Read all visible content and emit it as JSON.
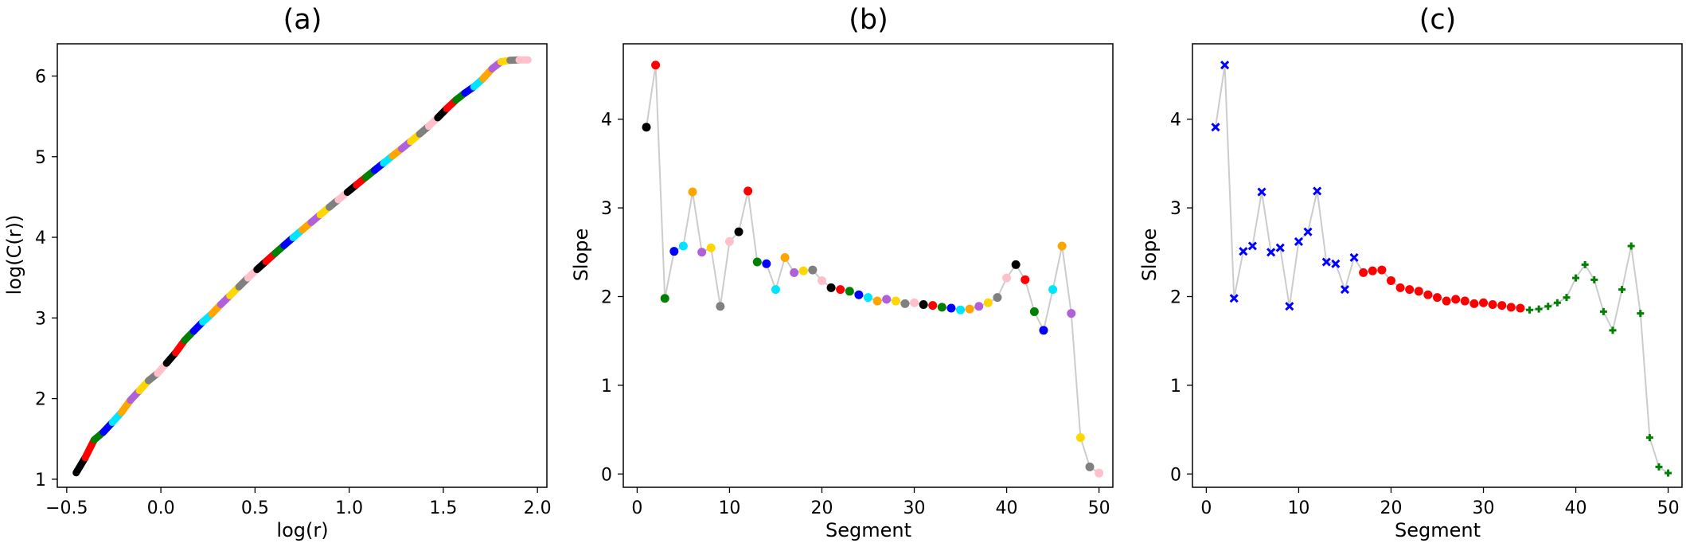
{
  "colors": {
    "connector": "#cccccc",
    "cycle": [
      "#000000",
      "#ff0000",
      "#008000",
      "#0000ff",
      "#00e5ff",
      "#ffa500",
      "#b060d8",
      "#ffd700",
      "#808080",
      "#ffc0cb"
    ],
    "regime1": "#0000ff",
    "regime2": "#ff0000",
    "regime3": "#008000"
  },
  "chart_data": [
    {
      "type": "scatter",
      "title": "(a)",
      "xlabel": "log(r)",
      "ylabel": "log(C(r))",
      "xlim": [
        -0.55,
        2.05
      ],
      "ylim": [
        0.9,
        6.4
      ],
      "xticks": [
        -0.5,
        0.0,
        0.5,
        1.0,
        1.5,
        2.0
      ],
      "xtick_labels": [
        "−0.5",
        "0.0",
        "0.5",
        "1.0",
        "1.5",
        "2.0"
      ],
      "yticks": [
        1,
        2,
        3,
        4,
        5,
        6
      ],
      "ytick_labels": [
        "1",
        "2",
        "3",
        "4",
        "5",
        "6"
      ],
      "grid": false,
      "legend": "none",
      "segments": 50,
      "x_start": -0.45,
      "x_end": 1.95,
      "y_start": 1.08,
      "note_source": "segment slopes from panel (b)"
    },
    {
      "type": "line",
      "title": "(b)",
      "xlabel": "Segment",
      "ylabel": "Slope",
      "xlim": [
        -1.5,
        51.5
      ],
      "ylim": [
        -0.15,
        4.85
      ],
      "xticks": [
        0,
        10,
        20,
        30,
        40,
        50
      ],
      "xtick_labels": [
        "0",
        "10",
        "20",
        "30",
        "40",
        "50"
      ],
      "yticks": [
        0,
        1,
        2,
        3,
        4
      ],
      "ytick_labels": [
        "0",
        "1",
        "2",
        "3",
        "4"
      ],
      "grid": false,
      "legend": "none",
      "x": [
        1,
        2,
        3,
        4,
        5,
        6,
        7,
        8,
        9,
        10,
        11,
        12,
        13,
        14,
        15,
        16,
        17,
        18,
        19,
        20,
        21,
        22,
        23,
        24,
        25,
        26,
        27,
        28,
        29,
        30,
        31,
        32,
        33,
        34,
        35,
        36,
        37,
        38,
        39,
        40,
        41,
        42,
        43,
        44,
        45,
        46,
        47,
        48,
        49,
        50
      ],
      "values": [
        3.91,
        4.61,
        1.98,
        2.51,
        2.57,
        3.18,
        2.5,
        2.55,
        1.89,
        2.62,
        2.73,
        3.19,
        2.39,
        2.37,
        2.08,
        2.44,
        2.27,
        2.29,
        2.3,
        2.18,
        2.1,
        2.08,
        2.06,
        2.02,
        1.99,
        1.95,
        1.97,
        1.95,
        1.92,
        1.93,
        1.91,
        1.9,
        1.88,
        1.87,
        1.85,
        1.86,
        1.89,
        1.93,
        1.99,
        2.21,
        2.36,
        2.19,
        1.83,
        1.62,
        2.08,
        2.57,
        1.81,
        0.41,
        0.08,
        0.01
      ]
    },
    {
      "type": "line",
      "title": "(c)",
      "xlabel": "Segment",
      "ylabel": "Slope",
      "xlim": [
        -1.5,
        51.5
      ],
      "ylim": [
        -0.15,
        4.85
      ],
      "xticks": [
        0,
        10,
        20,
        30,
        40,
        50
      ],
      "xtick_labels": [
        "0",
        "10",
        "20",
        "30",
        "40",
        "50"
      ],
      "yticks": [
        0,
        1,
        2,
        3,
        4
      ],
      "ytick_labels": [
        "0",
        "1",
        "2",
        "3",
        "4"
      ],
      "grid": false,
      "legend": "none",
      "regimes": [
        {
          "from": 1,
          "to": 16,
          "marker": "x",
          "color": "#0000ff"
        },
        {
          "from": 17,
          "to": 34,
          "marker": "circle",
          "color": "#ff0000"
        },
        {
          "from": 35,
          "to": 50,
          "marker": "plus",
          "color": "#008000"
        }
      ],
      "x": [
        1,
        2,
        3,
        4,
        5,
        6,
        7,
        8,
        9,
        10,
        11,
        12,
        13,
        14,
        15,
        16,
        17,
        18,
        19,
        20,
        21,
        22,
        23,
        24,
        25,
        26,
        27,
        28,
        29,
        30,
        31,
        32,
        33,
        34,
        35,
        36,
        37,
        38,
        39,
        40,
        41,
        42,
        43,
        44,
        45,
        46,
        47,
        48,
        49,
        50
      ],
      "values": [
        3.91,
        4.61,
        1.98,
        2.51,
        2.57,
        3.18,
        2.5,
        2.55,
        1.89,
        2.62,
        2.73,
        3.19,
        2.39,
        2.37,
        2.08,
        2.44,
        2.27,
        2.29,
        2.3,
        2.18,
        2.1,
        2.08,
        2.06,
        2.02,
        1.99,
        1.95,
        1.97,
        1.95,
        1.92,
        1.93,
        1.91,
        1.9,
        1.88,
        1.87,
        1.85,
        1.86,
        1.89,
        1.93,
        1.99,
        2.21,
        2.36,
        2.19,
        1.83,
        1.62,
        2.08,
        2.57,
        1.81,
        0.41,
        0.08,
        0.01
      ]
    }
  ]
}
